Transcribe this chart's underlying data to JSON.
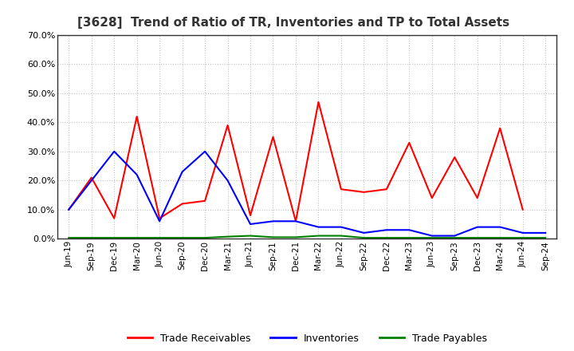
{
  "title": "[3628]  Trend of Ratio of TR, Inventories and TP to Total Assets",
  "x_labels": [
    "Jun-19",
    "Sep-19",
    "Dec-19",
    "Mar-20",
    "Jun-20",
    "Sep-20",
    "Dec-20",
    "Mar-21",
    "Jun-21",
    "Sep-21",
    "Dec-21",
    "Mar-22",
    "Jun-22",
    "Sep-22",
    "Dec-22",
    "Mar-23",
    "Jun-23",
    "Sep-23",
    "Dec-23",
    "Mar-24",
    "Jun-24",
    "Sep-24"
  ],
  "trade_receivables": [
    0.1,
    0.21,
    0.07,
    0.42,
    0.07,
    0.12,
    0.13,
    0.39,
    0.08,
    0.35,
    0.06,
    0.47,
    0.17,
    0.16,
    0.17,
    0.33,
    0.14,
    0.28,
    0.14,
    0.38,
    0.1,
    null
  ],
  "inventories": [
    0.1,
    0.2,
    0.3,
    0.22,
    0.06,
    0.23,
    0.3,
    0.2,
    0.05,
    0.06,
    0.06,
    0.04,
    0.04,
    0.02,
    0.03,
    0.03,
    0.01,
    0.01,
    0.04,
    0.04,
    0.02,
    0.02
  ],
  "trade_payables": [
    0.003,
    0.003,
    0.003,
    0.003,
    0.003,
    0.003,
    0.003,
    0.007,
    0.01,
    0.005,
    0.005,
    0.01,
    0.01,
    0.003,
    0.003,
    0.003,
    0.003,
    0.003,
    0.003,
    0.003,
    0.003,
    0.003
  ],
  "tr_color": "#ff0000",
  "inv_color": "#0000ff",
  "tp_color": "#008000",
  "ylim": [
    0.0,
    0.7
  ],
  "yticks": [
    0.0,
    0.1,
    0.2,
    0.3,
    0.4,
    0.5,
    0.6,
    0.7
  ],
  "bg_color": "#ffffff",
  "grid_color": "#bbbbbb"
}
